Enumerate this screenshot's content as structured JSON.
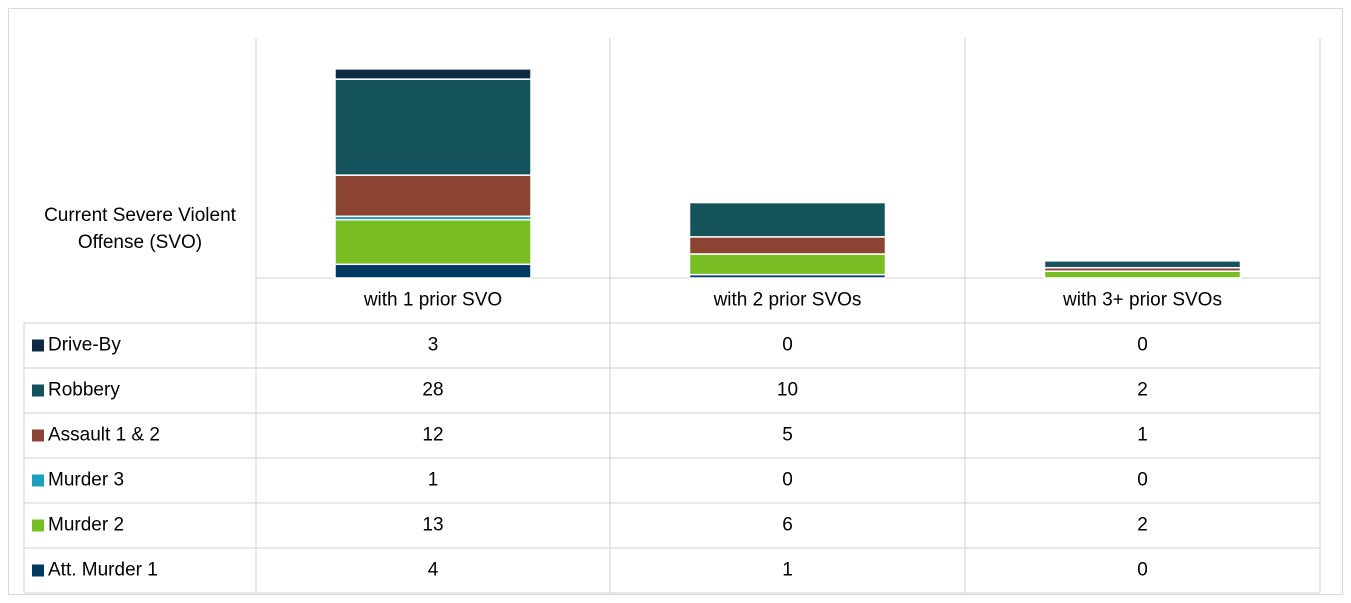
{
  "chart_data": {
    "type": "bar",
    "stacked": true,
    "axis_label": "Current Severe Violent Offense (SVO)",
    "categories": [
      "with 1 prior SVO",
      "with 2 prior SVOs",
      "with 3+ prior SVOs"
    ],
    "ylim": [
      0,
      70
    ],
    "series": [
      {
        "name": "Drive-By",
        "color": "#0e2a44",
        "values": [
          3,
          0,
          0
        ]
      },
      {
        "name": "Robbery",
        "color": "#14525c",
        "values": [
          28,
          10,
          2
        ]
      },
      {
        "name": "Assault 1 & 2",
        "color": "#8a4431",
        "values": [
          12,
          5,
          1
        ]
      },
      {
        "name": "Murder 3",
        "color": "#1a9fbf",
        "values": [
          1,
          0,
          0
        ]
      },
      {
        "name": "Murder 2",
        "color": "#78bd22",
        "values": [
          13,
          6,
          2
        ]
      },
      {
        "name": "Att. Murder 1",
        "color": "#003a62",
        "values": [
          4,
          1,
          0
        ]
      }
    ]
  }
}
